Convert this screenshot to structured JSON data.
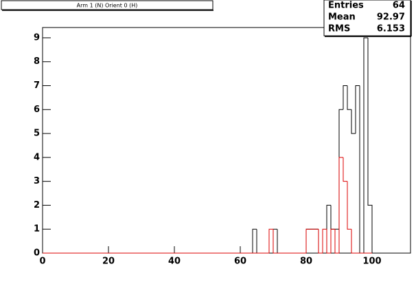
{
  "chart_data": {
    "type": "histogram",
    "title": "Arm 1 (N) Orient 0 (H)",
    "bins": [
      0,
      1.25,
      2.5,
      3.75,
      5,
      6.25,
      7.5,
      8.75,
      10,
      11.25,
      12.5,
      13.75,
      15,
      16.25,
      17.5,
      18.75,
      20,
      21.25,
      22.5,
      23.75,
      25,
      26.25,
      27.5,
      28.75,
      30,
      31.25,
      32.5,
      33.75,
      35,
      36.25,
      37.5,
      38.75,
      40,
      41.25,
      42.5,
      43.75,
      45,
      46.25,
      47.5,
      48.75,
      50,
      51.25,
      52.5,
      53.75,
      55,
      56.25,
      57.5,
      58.75,
      60,
      61.25,
      62.5,
      63.75,
      65,
      66.25,
      67.5,
      68.75,
      70,
      71.25,
      72.5,
      73.75,
      75,
      76.25,
      77.5,
      78.75,
      80,
      81.25,
      82.5,
      83.75,
      85,
      86.25,
      87.5,
      88.75,
      90,
      91.25,
      92.5,
      93.75,
      95,
      96.25,
      97.5,
      98.75,
      100
    ],
    "series": [
      {
        "color": "#000000",
        "values": [
          0,
          0,
          0,
          0,
          0,
          0,
          0,
          0,
          0,
          0,
          0,
          0,
          0,
          0,
          0,
          0,
          0,
          0,
          0,
          0,
          0,
          0,
          0,
          0,
          0,
          0,
          0,
          0,
          0,
          0,
          0,
          0,
          0,
          0,
          0,
          0,
          0,
          0,
          0,
          0,
          0,
          0,
          0,
          0,
          0,
          0,
          0,
          0,
          0,
          0,
          0,
          1,
          0,
          0,
          0,
          0,
          1,
          0,
          0,
          0,
          0,
          0,
          0,
          0,
          1,
          1,
          1,
          0,
          0,
          2,
          1,
          1,
          6,
          7,
          6,
          5,
          7,
          0,
          9,
          2
        ]
      },
      {
        "color": "#dd0000",
        "values": [
          0,
          0,
          0,
          0,
          0,
          0,
          0,
          0,
          0,
          0,
          0,
          0,
          0,
          0,
          0,
          0,
          0,
          0,
          0,
          0,
          0,
          0,
          0,
          0,
          0,
          0,
          0,
          0,
          0,
          0,
          0,
          0,
          0,
          0,
          0,
          0,
          0,
          0,
          0,
          0,
          0,
          0,
          0,
          0,
          0,
          0,
          0,
          0,
          0,
          0,
          0,
          0,
          0,
          0,
          0,
          1,
          0,
          0,
          0,
          0,
          0,
          0,
          0,
          0,
          1,
          1,
          1,
          0,
          1,
          0,
          1,
          0,
          4,
          3,
          1,
          0,
          0,
          0,
          0,
          0
        ]
      }
    ],
    "xlim": [
      0,
      111.67
    ],
    "ylim": [
      0,
      9.43
    ],
    "xticks": [
      0,
      20,
      40,
      60,
      80,
      100
    ],
    "yticks": [
      0,
      1,
      2,
      3,
      4,
      5,
      6,
      7,
      8,
      9
    ],
    "stats": [
      {
        "label": "Entries",
        "value": "64"
      },
      {
        "label": "Mean",
        "value": "92.97"
      },
      {
        "label": "RMS",
        "value": "6.153"
      }
    ]
  }
}
